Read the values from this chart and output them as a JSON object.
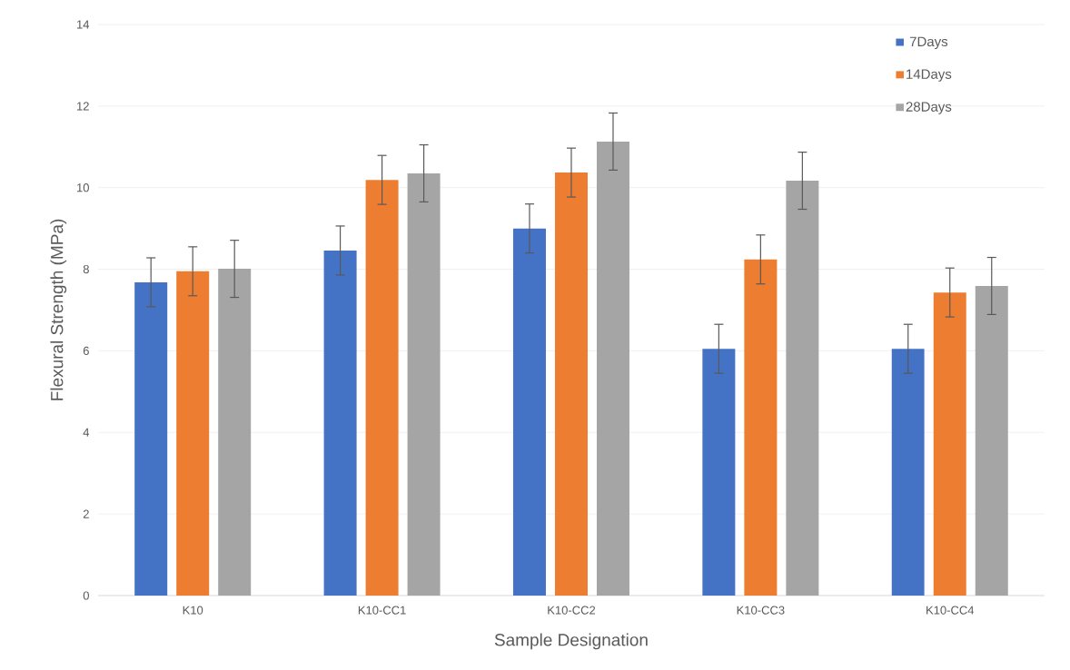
{
  "chart_data": {
    "type": "bar",
    "xlabel": "Sample Designation",
    "ylabel": "Flexural Strength (MPa)",
    "categories": [
      "K10",
      "K10-CC1",
      "K10-CC2",
      "K10-CC3",
      "K10-CC4"
    ],
    "series": [
      {
        "name": "7Days",
        "color": "#4472c4",
        "values": [
          7.68,
          8.46,
          9.0,
          6.05,
          6.05
        ],
        "errors": [
          0.6,
          0.6,
          0.6,
          0.6,
          0.6
        ]
      },
      {
        "name": "14Days",
        "color": "#ed7d31",
        "values": [
          7.95,
          10.19,
          10.37,
          8.24,
          7.43
        ],
        "errors": [
          0.6,
          0.6,
          0.6,
          0.6,
          0.6
        ]
      },
      {
        "name": "28Days",
        "color": "#a5a5a5",
        "values": [
          8.01,
          10.35,
          11.13,
          10.17,
          7.59
        ],
        "errors": [
          0.7,
          0.7,
          0.7,
          0.7,
          0.7
        ]
      }
    ],
    "ylim": [
      0,
      14
    ],
    "yticks": [
      0,
      2,
      4,
      6,
      8,
      10,
      12,
      14
    ],
    "grid": "y",
    "legend": "top right"
  }
}
